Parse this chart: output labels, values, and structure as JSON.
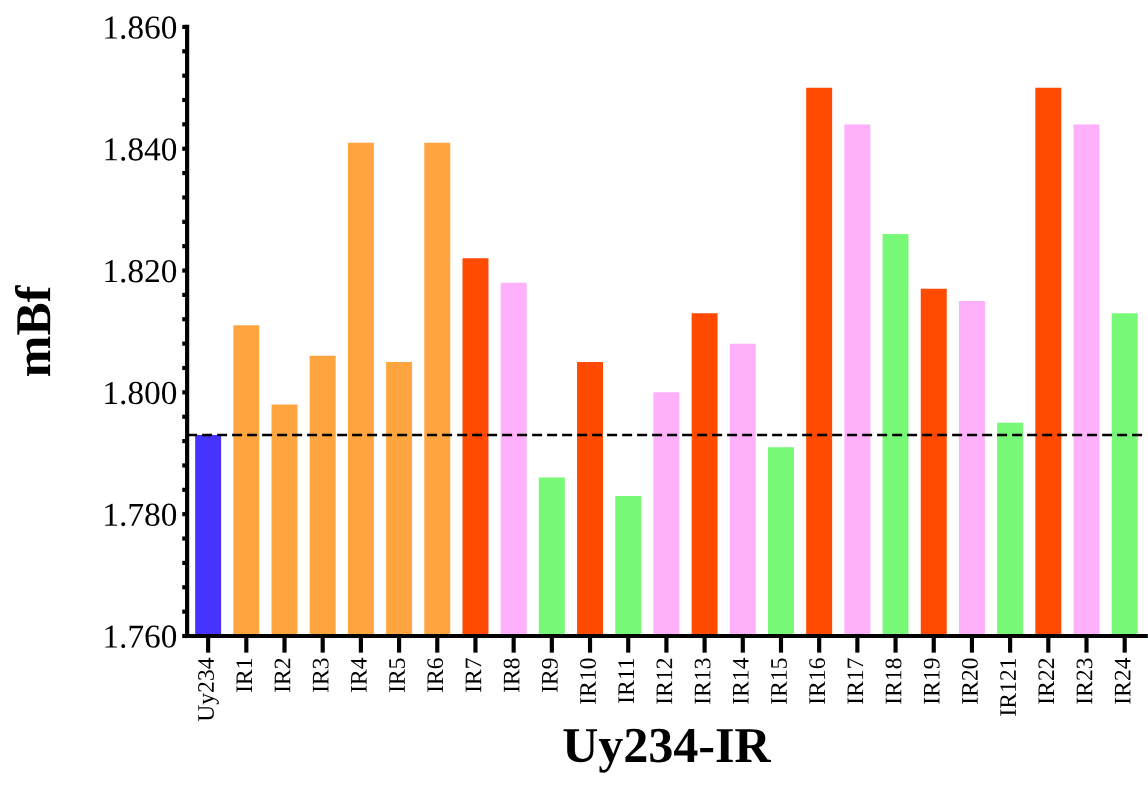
{
  "chart_data": {
    "type": "bar",
    "xlabel": "Uy234-IR",
    "ylabel": "mBf",
    "categories": [
      "Uy234",
      "IR1",
      "IR2",
      "IR3",
      "IR4",
      "IR5",
      "IR6",
      "IR7",
      "IR8",
      "IR9",
      "IR10",
      "IR11",
      "IR12",
      "IR13",
      "IR14",
      "IR15",
      "IR16",
      "IR17",
      "IR18",
      "IR19",
      "IR20",
      "IR121",
      "IR22",
      "IR23",
      "IR24"
    ],
    "values": [
      1.793,
      1.811,
      1.798,
      1.806,
      1.841,
      1.805,
      1.841,
      1.822,
      1.818,
      1.786,
      1.805,
      1.783,
      1.8,
      1.813,
      1.808,
      1.791,
      1.85,
      1.844,
      1.826,
      1.817,
      1.815,
      1.795,
      1.85,
      1.844,
      1.813
    ],
    "colors": [
      "#4633ff",
      "#ffa540",
      "#ffa540",
      "#ffa540",
      "#ffa540",
      "#ffa540",
      "#ffa540",
      "#ff4a00",
      "#ffb0fa",
      "#77f977",
      "#ff4a00",
      "#77f977",
      "#ffb0fa",
      "#ff4a00",
      "#ffb0fa",
      "#77f977",
      "#ff4a00",
      "#ffb0fa",
      "#77f977",
      "#ff4a00",
      "#ffb0fa",
      "#77f977",
      "#ff4a00",
      "#ffb0fa",
      "#77f977"
    ],
    "ylim": [
      1.76,
      1.86
    ],
    "yticks": [
      {
        "value": 1.76,
        "label": "1.760"
      },
      {
        "value": 1.764,
        "label": null
      },
      {
        "value": 1.768,
        "label": null
      },
      {
        "value": 1.772,
        "label": null
      },
      {
        "value": 1.776,
        "label": null
      },
      {
        "value": 1.78,
        "label": "1.780"
      },
      {
        "value": 1.784,
        "label": null
      },
      {
        "value": 1.788,
        "label": null
      },
      {
        "value": 1.792,
        "label": null
      },
      {
        "value": 1.796,
        "label": null
      },
      {
        "value": 1.8,
        "label": "1.800"
      },
      {
        "value": 1.804,
        "label": null
      },
      {
        "value": 1.808,
        "label": null
      },
      {
        "value": 1.812,
        "label": null
      },
      {
        "value": 1.816,
        "label": null
      },
      {
        "value": 1.82,
        "label": "1.820"
      },
      {
        "value": 1.824,
        "label": null
      },
      {
        "value": 1.828,
        "label": null
      },
      {
        "value": 1.832,
        "label": null
      },
      {
        "value": 1.836,
        "label": null
      },
      {
        "value": 1.84,
        "label": "1.840"
      },
      {
        "value": 1.844,
        "label": null
      },
      {
        "value": 1.848,
        "label": null
      },
      {
        "value": 1.852,
        "label": null
      },
      {
        "value": 1.856,
        "label": null
      },
      {
        "value": 1.86,
        "label": "1.860"
      }
    ],
    "ref_lines": [
      {
        "axis": "y",
        "value": 1.793,
        "color": "#000000",
        "line_style": "dashed"
      }
    ],
    "grid": false,
    "legend": false
  }
}
